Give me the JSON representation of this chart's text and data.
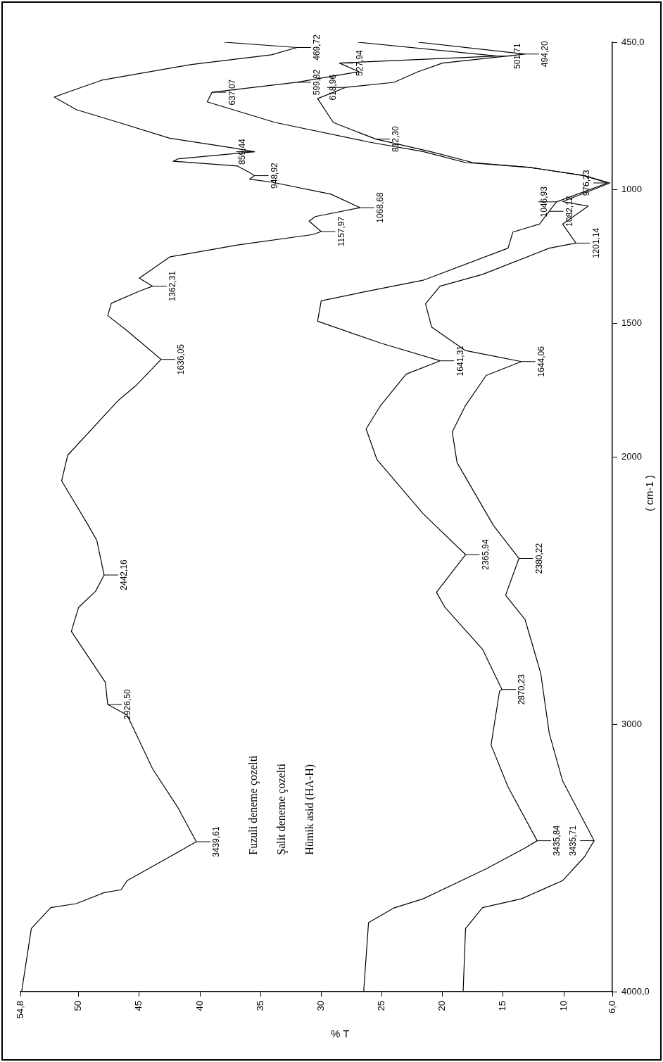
{
  "chart_data": {
    "type": "line",
    "orientation": "horizontal",
    "xlabel": "% T",
    "ylabel": "( cm-1 )",
    "xlim": [
      54.8,
      6
    ],
    "xticks": [
      {
        "value": 54.8,
        "label": "54,8"
      },
      50,
      45,
      40,
      35,
      30,
      25,
      20,
      15,
      10,
      {
        "value": 6,
        "label": "6,0"
      }
    ],
    "ylim": [
      4000,
      450
    ],
    "yticks": [
      {
        "value": 4000,
        "label": "4000,0"
      },
      3000,
      2000,
      1500,
      1000,
      {
        "value": 450,
        "label": "450,0"
      }
    ],
    "marker": "none",
    "line_style": "solid",
    "series": [
      {
        "color": "#000000",
        "x": [
          4000,
          3764,
          3686,
          3671,
          3630,
          3619,
          3585,
          3496,
          3439.61,
          3313,
          3167,
          2966,
          2926.5,
          2843,
          2653,
          2563,
          2503,
          2442.16,
          2313,
          2257,
          2090,
          1994,
          1788,
          1735,
          1636.05,
          1529,
          1472,
          1426,
          1381,
          1362.31,
          1332,
          1253,
          1208,
          1169,
          1157.97,
          1119,
          1102,
          1068.68,
          1018,
          973,
          962,
          948.92,
          935,
          913,
          895,
          886,
          859.44,
          845,
          809,
          750,
          702,
          655,
          637,
          592,
          534,
          497,
          469.72,
          450
        ],
        "values": [
          54.7,
          53.9,
          52.3,
          50.2,
          47.9,
          46.5,
          46.0,
          42.5,
          40.3,
          41.8,
          43.9,
          46.0,
          47.6,
          47.8,
          50.6,
          50.0,
          48.6,
          47.9,
          48.5,
          49.2,
          51.4,
          50.9,
          46.7,
          45.3,
          43.2,
          46.0,
          47.6,
          47.3,
          45.0,
          43.9,
          45.0,
          42.5,
          36.9,
          30.7,
          30.0,
          31.0,
          30.5,
          26.8,
          29.2,
          34.1,
          35.9,
          35.5,
          36.0,
          36.9,
          42.2,
          41.8,
          35.5,
          37.3,
          42.5,
          46.7,
          50.2,
          52.0,
          50.9,
          48.1,
          40.8,
          34.1,
          32.0,
          38.0
        ]
      },
      {
        "color": "#000000",
        "x": [
          4000,
          3742,
          3687,
          3653,
          3541,
          3463,
          3435.84,
          3234,
          3078,
          2877,
          2870.23,
          2720,
          2563,
          2507,
          2365.94,
          2213,
          2011,
          1896,
          1808,
          1691,
          1641.31,
          1575,
          1493,
          1417,
          1384,
          1340,
          1220,
          1160,
          1130,
          1082.12,
          1046.93,
          976.23,
          949,
          918,
          900,
          859,
          823,
          750,
          673,
          637.07,
          599.82,
          560,
          527.94,
          501.71,
          450
        ],
        "values": [
          26.5,
          26.1,
          24.0,
          21.6,
          16.4,
          13.2,
          12.2,
          14.6,
          16.0,
          15.3,
          15.1,
          16.7,
          19.8,
          20.5,
          18.1,
          21.6,
          25.4,
          26.3,
          25.1,
          23.0,
          20.2,
          25.1,
          30.3,
          30.0,
          26.5,
          21.6,
          14.6,
          14.2,
          12.0,
          11.2,
          10.6,
          6.4,
          8.3,
          12.8,
          18.1,
          21.6,
          26.1,
          33.8,
          39.4,
          39.0,
          32.0,
          26.9,
          28.5,
          15.5,
          27.0
        ]
      },
      {
        "color": "#000000",
        "x": [
          4000,
          3764,
          3686,
          3653,
          3585,
          3496,
          3435.71,
          3212,
          3034,
          2810,
          2608,
          2518,
          2380.22,
          2257,
          2022,
          1907,
          1808,
          1696,
          1644.06,
          1603,
          1515,
          1428,
          1362,
          1318,
          1220,
          1201.14,
          1130,
          1063,
          1046,
          976.23,
          949,
          918,
          900,
          859,
          812.3,
          750,
          661,
          618.96,
          600,
          560,
          527.94,
          494.2,
          450
        ],
        "values": [
          18.3,
          18.1,
          16.7,
          13.5,
          10.1,
          8.3,
          7.5,
          10.1,
          11.2,
          11.9,
          13.2,
          14.8,
          13.7,
          15.8,
          18.8,
          19.2,
          18.1,
          16.4,
          13.5,
          18.1,
          20.9,
          21.4,
          20.2,
          16.7,
          11.2,
          9.0,
          10.1,
          8.0,
          10.1,
          6.2,
          8.3,
          12.8,
          17.5,
          21.0,
          25.5,
          29.0,
          30.3,
          28.0,
          24.0,
          22.0,
          20.0,
          13.2,
          22.0
        ]
      }
    ],
    "annotations": [
      "Fuzuli deneme çozelti",
      "Şalit deneme çozelti",
      "Hümik asid (HA-H)",
      {
        "text": "3439,61",
        "x": 40.3,
        "y": 3439.61
      },
      {
        "text": "2926,50",
        "x": 47.6,
        "y": 2926.5
      },
      {
        "text": "2442,16",
        "x": 47.9,
        "y": 2442.16
      },
      {
        "text": "1636,05",
        "x": 43.2,
        "y": 1636.05
      },
      {
        "text": "1362,31",
        "x": 43.9,
        "y": 1362.31
      },
      {
        "text": "1157,97",
        "x": 30.0,
        "y": 1157.97
      },
      {
        "text": "1068,68",
        "x": 26.8,
        "y": 1068.68
      },
      {
        "text": "948,92",
        "x": 35.5,
        "y": 948.92
      },
      {
        "text": "859,44",
        "x": 35.5,
        "y": 859.44
      },
      {
        "text": "469,72",
        "x": 32.0,
        "y": 469.72
      },
      {
        "text": "3435,84",
        "x": 12.2,
        "y": 3435.84
      },
      {
        "text": "2870,23",
        "x": 15.1,
        "y": 2870.23
      },
      {
        "text": "2365,94",
        "x": 18.1,
        "y": 2365.94
      },
      {
        "text": "1641,31",
        "x": 20.2,
        "y": 1641.31
      },
      {
        "text": "1082,12",
        "x": 11.2,
        "y": 1082.12
      },
      {
        "text": "1046,93",
        "x": 10.6,
        "y": 1046.93
      },
      {
        "text": "976,23",
        "x": 6.4,
        "y": 976.23
      },
      {
        "text": "637,07",
        "x": 39.0,
        "y": 637.07
      },
      {
        "text": "599,82",
        "x": 32.0,
        "y": 599.82
      },
      {
        "text": "527,94",
        "x": 28.5,
        "y": 527.94
      },
      {
        "text": "501,71",
        "x": 15.5,
        "y": 501.71
      },
      {
        "text": "3435,71",
        "x": 7.5,
        "y": 3435.71
      },
      {
        "text": "2380,22",
        "x": 13.7,
        "y": 2380.22
      },
      {
        "text": "1644,06",
        "x": 13.5,
        "y": 1644.06
      },
      {
        "text": "1201,14",
        "x": 9.0,
        "y": 1201.14
      },
      {
        "text": "812,30",
        "x": 25.5,
        "y": 812.3
      },
      {
        "text": "618,96",
        "x": 28.0,
        "y": 618.96
      },
      {
        "text": "494,20",
        "x": 13.2,
        "y": 494.2
      }
    ]
  }
}
